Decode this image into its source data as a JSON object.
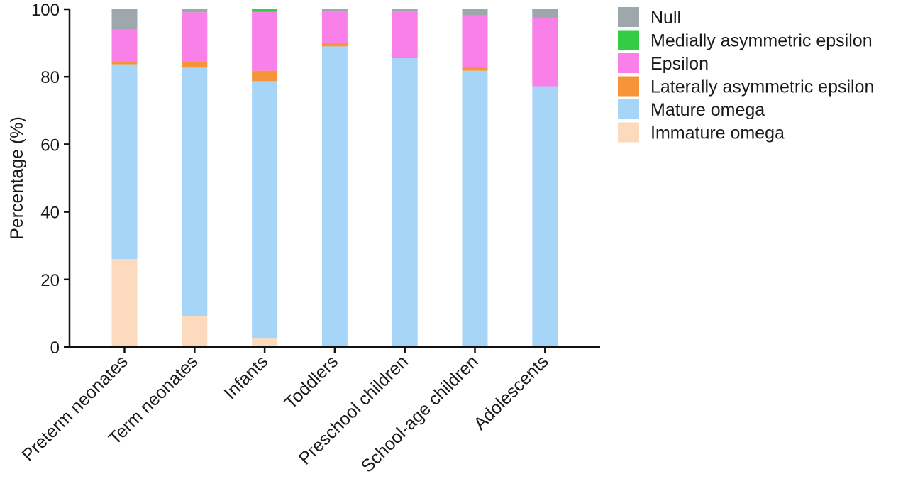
{
  "chart_data": {
    "type": "bar",
    "stacked": true,
    "categories": [
      "Preterm neonates",
      "Term neonates",
      "Infants",
      "Toddlers",
      "Preschool children",
      "School-age children",
      "Adolescents"
    ],
    "ylabel": "Percentage (%)",
    "xlabel": "",
    "ylim": [
      0,
      100
    ],
    "yticks": [
      0,
      20,
      40,
      60,
      80,
      100
    ],
    "grid": false,
    "legend_position": "right",
    "series": [
      {
        "name": "Immature omega",
        "color": "#FCDABD",
        "values": [
          26.0,
          9.2,
          2.5,
          0,
          0,
          0,
          0
        ]
      },
      {
        "name": "Mature omega",
        "color": "#A6D5F7",
        "values": [
          57.7,
          73.5,
          76.2,
          89.0,
          85.5,
          81.8,
          77.2
        ]
      },
      {
        "name": "Laterally asymmetric epsilon",
        "color": "#F7943A",
        "values": [
          0.6,
          1.6,
          3.1,
          1.0,
          0,
          1.0,
          0
        ]
      },
      {
        "name": "Epsilon",
        "color": "#F97FE9",
        "values": [
          9.7,
          14.8,
          17.4,
          9.2,
          14.0,
          15.4,
          20.1
        ]
      },
      {
        "name": "Medially asymmetric epsilon",
        "color": "#33CC44",
        "values": [
          0,
          0,
          0.8,
          0,
          0,
          0,
          0
        ]
      },
      {
        "name": "Null",
        "color": "#9EA7AC",
        "values": [
          6.0,
          0.9,
          0,
          0.8,
          0.5,
          1.8,
          2.7
        ]
      }
    ]
  }
}
